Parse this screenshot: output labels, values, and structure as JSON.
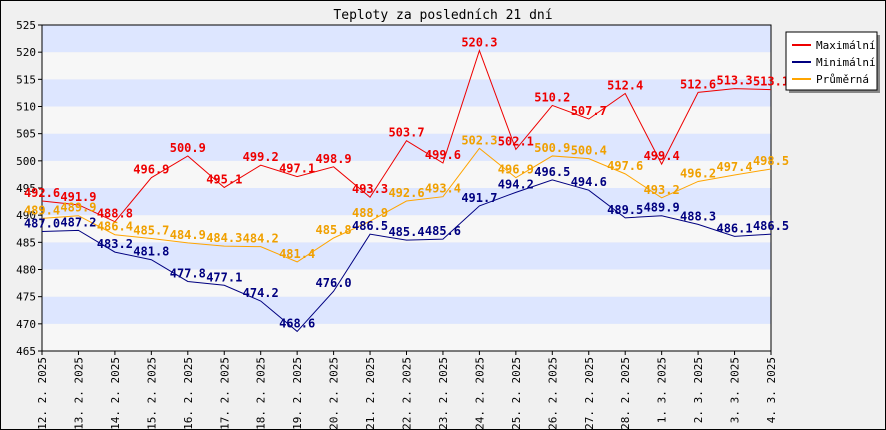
{
  "chart_data": {
    "type": "line",
    "title": "Teploty za posledních 21 dní",
    "xlabel": "",
    "ylabel": "",
    "ylim": [
      465,
      525
    ],
    "yticks": [
      465,
      470,
      475,
      480,
      485,
      490,
      495,
      500,
      505,
      510,
      515,
      520,
      525
    ],
    "categories": [
      "12. 2. 2025",
      "13. 2. 2025",
      "14. 2. 2025",
      "15. 2. 2025",
      "16. 2. 2025",
      "17. 2. 2025",
      "18. 2. 2025",
      "19. 2. 2025",
      "20. 2. 2025",
      "21. 2. 2025",
      "22. 2. 2025",
      "23. 2. 2025",
      "24. 2. 2025",
      "25. 2. 2025",
      "26. 2. 2025",
      "27. 2. 2025",
      "28. 2. 2025",
      "1. 3. 2025",
      "2. 3. 2025",
      "3. 3. 2025",
      "4. 3. 2025"
    ],
    "grid": "horizontal bands",
    "legend_position": "top-right",
    "series": [
      {
        "name": "Maximální",
        "color": "#ee0000",
        "label_color": "#ee0000",
        "values": [
          492.6,
          491.9,
          488.8,
          496.9,
          500.9,
          495.1,
          499.2,
          497.1,
          498.9,
          493.3,
          503.7,
          499.6,
          520.3,
          502.1,
          510.2,
          507.7,
          512.4,
          499.4,
          512.6,
          513.3,
          513.1
        ]
      },
      {
        "name": "Minimální",
        "color": "#000080",
        "label_color": "#000080",
        "values": [
          487.0,
          487.2,
          483.2,
          481.8,
          477.8,
          477.1,
          474.2,
          468.6,
          476.0,
          486.5,
          485.4,
          485.6,
          491.7,
          494.2,
          496.5,
          494.6,
          489.5,
          489.9,
          488.3,
          486.1,
          486.5
        ]
      },
      {
        "name": "Průměrná",
        "color": "#ffa500",
        "label_color": "#f0a000",
        "values": [
          489.4,
          489.9,
          486.4,
          485.7,
          484.9,
          484.3,
          484.2,
          481.4,
          485.8,
          488.9,
          492.6,
          493.4,
          502.3,
          496.9,
          500.9,
          500.4,
          497.6,
          493.2,
          496.2,
          497.4,
          498.5
        ]
      }
    ]
  },
  "colors": {
    "band_a": "#f7f7f7",
    "band_b": "#dde6ff",
    "background": "#f0f0f0"
  }
}
